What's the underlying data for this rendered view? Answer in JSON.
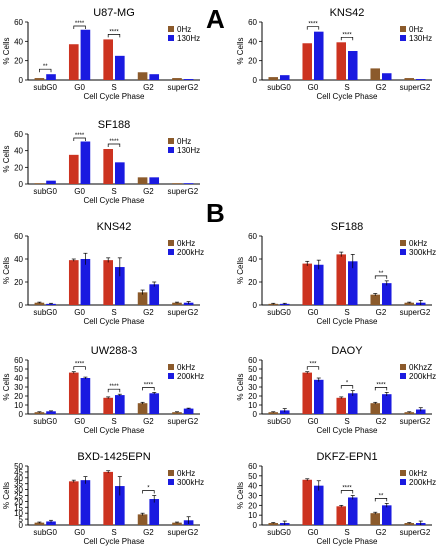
{
  "figure": {
    "panel_labels": [
      "A",
      "B"
    ]
  },
  "colors": {
    "series_0": "#cc3320",
    "series_1": "#1a1ae0",
    "bar_dark": "#8b5a2b",
    "bracket": "#000000"
  },
  "chart_data": [
    {
      "type": "bar",
      "title": "U87-MG",
      "xlabel": "Cell Cycle Phase",
      "ylabel": "% Cells",
      "categories": [
        "subG0",
        "G0",
        "S",
        "G2",
        "superG2"
      ],
      "ylim": [
        0,
        60
      ],
      "yticks": [
        0,
        20,
        40,
        60
      ],
      "series": [
        {
          "name": "0Hz",
          "values": [
            2,
            37,
            42,
            8,
            2
          ]
        },
        {
          "name": "130Hz",
          "values": [
            6,
            52,
            25,
            6,
            1
          ]
        }
      ],
      "annotations": [
        {
          "category": "subG0",
          "text": "**"
        },
        {
          "category": "G0",
          "text": "****"
        },
        {
          "category": "S",
          "text": "****"
        }
      ],
      "legend": "top-right"
    },
    {
      "type": "bar",
      "title": "KNS42",
      "xlabel": "Cell Cycle Phase",
      "ylabel": "% Cells",
      "categories": [
        "subG0",
        "G0",
        "S",
        "G2",
        "superG2"
      ],
      "ylim": [
        0,
        60
      ],
      "yticks": [
        0,
        20,
        40,
        60
      ],
      "series": [
        {
          "name": "0Hz",
          "values": [
            3,
            38,
            39,
            12,
            2
          ]
        },
        {
          "name": "130Hz",
          "values": [
            5,
            50,
            30,
            7,
            1
          ]
        }
      ],
      "annotations": [
        {
          "category": "G0",
          "text": "****"
        },
        {
          "category": "S",
          "text": "****"
        }
      ],
      "legend": "top-right"
    },
    {
      "type": "bar",
      "title": "SF188",
      "xlabel": "Cell Cycle Phase",
      "ylabel": "% Cells",
      "categories": [
        "subG0",
        "G0",
        "S",
        "G2",
        "superG2"
      ],
      "ylim": [
        0,
        60
      ],
      "yticks": [
        0,
        20,
        40,
        60
      ],
      "series": [
        {
          "name": "0Hz",
          "values": [
            1,
            35,
            42,
            8,
            1
          ]
        },
        {
          "name": "130Hz",
          "values": [
            4,
            51,
            26,
            8,
            1
          ]
        }
      ],
      "annotations": [
        {
          "category": "G0",
          "text": "****"
        },
        {
          "category": "S",
          "text": "****"
        }
      ],
      "legend": "top-right"
    },
    {
      "type": "bar",
      "title": "KNS42",
      "xlabel": "Cell Cycle Phase",
      "ylabel": "% Cells",
      "categories": [
        "subG0",
        "G0",
        "S",
        "G2",
        "superG2"
      ],
      "ylim": [
        0,
        60
      ],
      "yticks": [
        0,
        20,
        40,
        60
      ],
      "series": [
        {
          "name": "0kHz",
          "values": [
            2,
            39,
            39,
            11,
            2
          ],
          "errors": [
            0.5,
            1,
            2,
            2,
            0.5
          ]
        },
        {
          "name": "200kHz",
          "values": [
            1,
            40,
            33,
            18,
            2
          ],
          "errors": [
            0.5,
            5,
            8,
            2,
            1
          ]
        }
      ],
      "annotations": [],
      "legend": "top-right"
    },
    {
      "type": "bar",
      "title": "SF188",
      "xlabel": "Cell Cycle Phase",
      "ylabel": "% Cells",
      "categories": [
        "subG0",
        "G0",
        "S",
        "G2",
        "superG2"
      ],
      "ylim": [
        0,
        60
      ],
      "yticks": [
        0,
        20,
        40,
        60
      ],
      "series": [
        {
          "name": "0kHz",
          "values": [
            1,
            36,
            44,
            9,
            2
          ],
          "errors": [
            0.5,
            2,
            2,
            1,
            0.5
          ]
        },
        {
          "name": "300kHz",
          "values": [
            1,
            35,
            38,
            19,
            2
          ],
          "errors": [
            0.5,
            4,
            6,
            2,
            2
          ]
        }
      ],
      "annotations": [
        {
          "category": "G2",
          "text": "**"
        }
      ],
      "legend": "top-right"
    },
    {
      "type": "bar",
      "title": "UW288-3",
      "xlabel": "Cell Cycle Phase",
      "ylabel": "% Cells",
      "categories": [
        "subG0",
        "G0",
        "S",
        "G2",
        "superG2"
      ],
      "ylim": [
        0,
        60
      ],
      "yticks": [
        0,
        10,
        20,
        30,
        40,
        50,
        60
      ],
      "series": [
        {
          "name": "0kHz",
          "values": [
            2,
            46,
            18,
            12,
            2
          ],
          "errors": [
            0.5,
            1,
            1,
            1,
            0.5
          ]
        },
        {
          "name": "200kHz",
          "values": [
            3,
            40,
            21,
            23,
            6
          ],
          "errors": [
            0.5,
            1,
            1,
            1,
            0.5
          ]
        }
      ],
      "annotations": [
        {
          "category": "G0",
          "text": "****"
        },
        {
          "category": "S",
          "text": "****"
        },
        {
          "category": "G2",
          "text": "****"
        }
      ],
      "legend": "top-right"
    },
    {
      "type": "bar",
      "title": "DAOY",
      "xlabel": "Cell Cycle Phase",
      "ylabel": "% Cells",
      "categories": [
        "subG0",
        "G0",
        "S",
        "G2",
        "superG2"
      ],
      "ylim": [
        0,
        60
      ],
      "yticks": [
        0,
        10,
        20,
        30,
        40,
        50,
        60
      ],
      "series": [
        {
          "name": "0KhzZ",
          "values": [
            2,
            46,
            18,
            12,
            2
          ],
          "errors": [
            0.5,
            1,
            1,
            1,
            0.5
          ]
        },
        {
          "name": "200kHz",
          "values": [
            4,
            38,
            23,
            22,
            5
          ],
          "errors": [
            2,
            2,
            3,
            2,
            2
          ]
        }
      ],
      "annotations": [
        {
          "category": "G0",
          "text": "***"
        },
        {
          "category": "S",
          "text": "*"
        },
        {
          "category": "G2",
          "text": "****"
        }
      ],
      "legend": "top-right"
    },
    {
      "type": "bar",
      "title": "BXD-1425EPN",
      "xlabel": "Cell Cycle Phase",
      "ylabel": "% Cells",
      "categories": [
        "subG0",
        "G0",
        "S",
        "G2",
        "superG2"
      ],
      "ylim": [
        0,
        50
      ],
      "yticks": [
        0,
        5,
        10,
        15,
        20,
        25,
        30,
        35,
        40,
        45,
        50
      ],
      "series": [
        {
          "name": "0kHz",
          "values": [
            2,
            37,
            45,
            9,
            2
          ],
          "errors": [
            0.5,
            1,
            1,
            1,
            0.5
          ]
        },
        {
          "name": "300kHz",
          "values": [
            3,
            38,
            33,
            22,
            4
          ],
          "errors": [
            1,
            3,
            8,
            3,
            3
          ]
        }
      ],
      "annotations": [
        {
          "category": "G2",
          "text": "*"
        }
      ],
      "legend": "top-right"
    },
    {
      "type": "bar",
      "title": "DKFZ-EPN1",
      "xlabel": "Cell Cycle Phase",
      "ylabel": "% Cells",
      "categories": [
        "subG0",
        "G0",
        "S",
        "G2",
        "superG2"
      ],
      "ylim": [
        0,
        60
      ],
      "yticks": [
        0,
        10,
        20,
        30,
        40,
        50,
        60
      ],
      "series": [
        {
          "name": "0kHz",
          "values": [
            2,
            46,
            19,
            12,
            2
          ],
          "errors": [
            0.5,
            1,
            1,
            1,
            0.5
          ]
        },
        {
          "name": "200kHz",
          "values": [
            2,
            40,
            28,
            20,
            2
          ],
          "errors": [
            2,
            5,
            2,
            2,
            2
          ]
        }
      ],
      "annotations": [
        {
          "category": "S",
          "text": "****"
        },
        {
          "category": "G2",
          "text": "**"
        }
      ],
      "legend": "top-right"
    }
  ]
}
